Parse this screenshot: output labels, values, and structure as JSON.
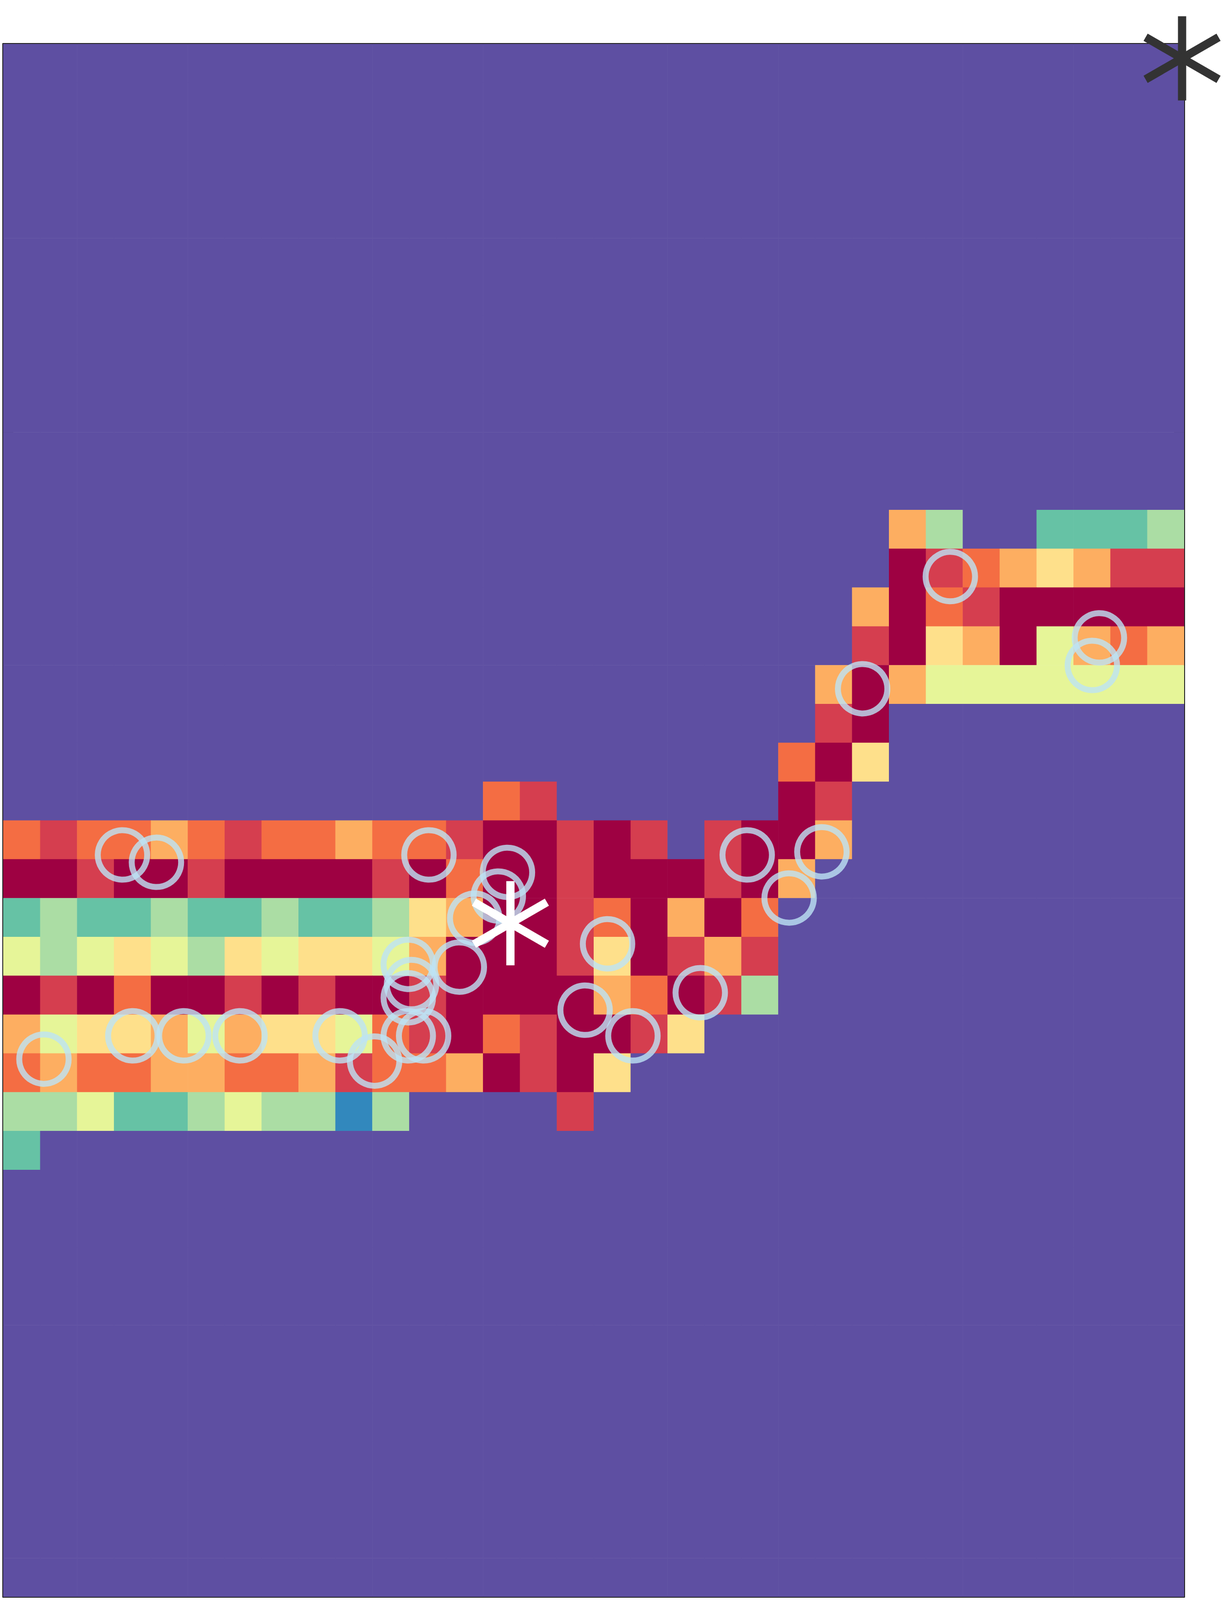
{
  "chart_data": {
    "type": "heatmap",
    "xlim": [
      0,
      4
    ],
    "ylim": [
      0,
      4
    ],
    "xticks": [
      0,
      1,
      2,
      3,
      4
    ],
    "yticks": [
      0,
      1,
      2,
      3,
      4
    ],
    "tick_labels": false,
    "grid": false,
    "clim": [
      0,
      9
    ],
    "x_edges": [
      0,
      0.125,
      0.25,
      0.375,
      0.5,
      0.625,
      0.75,
      0.875,
      1,
      1.125,
      1.25,
      1.375,
      1.5,
      1.625,
      1.75,
      1.875,
      2,
      2.125,
      2.25,
      2.375,
      2.5,
      2.625,
      2.75,
      2.875,
      3,
      3.125,
      3.25,
      3.375,
      3.5,
      3.625,
      3.75,
      3.875,
      4
    ],
    "y_edges": [
      4,
      3.9,
      3.8,
      3.7,
      3.6,
      3.5,
      3.4,
      3.3,
      3.2,
      3.1,
      3,
      2.9,
      2.8,
      2.7,
      2.6,
      2.5,
      2.4,
      2.3,
      2.2,
      2.1,
      2,
      1.9,
      1.8,
      1.7,
      1.6,
      1.5,
      1.4,
      1.3,
      1.2,
      1.1,
      1,
      0.9,
      0.8,
      0.7,
      0.6,
      0.5,
      0.4,
      0.3,
      0.2,
      0.1,
      0
    ],
    "cells": [
      [
        0,
        0,
        0,
        0,
        0,
        0,
        0,
        0,
        0,
        0,
        0,
        0,
        0,
        0,
        0,
        0,
        0,
        0,
        0,
        0,
        0,
        0,
        0,
        0,
        0,
        0,
        0,
        0,
        0,
        0,
        0,
        0
      ],
      [
        0,
        0,
        0,
        0,
        0,
        0,
        0,
        0,
        0,
        0,
        0,
        0,
        0,
        0,
        0,
        0,
        0,
        0,
        0,
        0,
        0,
        0,
        0,
        0,
        0,
        0,
        0,
        0,
        0,
        0,
        0,
        0
      ],
      [
        0,
        0,
        0,
        0,
        0,
        0,
        0,
        0,
        0,
        0,
        0,
        0,
        0,
        0,
        0,
        0,
        0,
        0,
        0,
        0,
        0,
        0,
        0,
        0,
        0,
        0,
        0,
        0,
        0,
        0,
        0,
        0
      ],
      [
        0,
        0,
        0,
        0,
        0,
        0,
        0,
        0,
        0,
        0,
        0,
        0,
        0,
        0,
        0,
        0,
        0,
        0,
        0,
        0,
        0,
        0,
        0,
        0,
        0,
        0,
        0,
        0,
        0,
        0,
        0,
        0
      ],
      [
        0,
        0,
        0,
        0,
        0,
        0,
        0,
        0,
        0,
        0,
        0,
        0,
        0,
        0,
        0,
        0,
        0,
        0,
        0,
        0,
        0,
        0,
        0,
        0,
        0,
        0,
        0,
        0,
        0,
        0,
        0,
        0
      ],
      [
        0,
        0,
        0,
        0,
        0,
        0,
        0,
        0,
        0,
        0,
        0,
        0,
        0,
        0,
        0,
        0,
        0,
        0,
        0,
        0,
        0,
        0,
        0,
        0,
        0,
        0,
        0,
        0,
        0,
        0,
        0,
        0
      ],
      [
        0,
        0,
        0,
        0,
        0,
        0,
        0,
        0,
        0,
        0,
        0,
        0,
        0,
        0,
        0,
        0,
        0,
        0,
        0,
        0,
        0,
        0,
        0,
        0,
        0,
        0,
        0,
        0,
        0,
        0,
        0,
        0
      ],
      [
        0,
        0,
        0,
        0,
        0,
        0,
        0,
        0,
        0,
        0,
        0,
        0,
        0,
        0,
        0,
        0,
        0,
        0,
        0,
        0,
        0,
        0,
        0,
        0,
        0,
        0,
        0,
        0,
        0,
        0,
        0,
        0
      ],
      [
        0,
        0,
        0,
        0,
        0,
        0,
        0,
        0,
        0,
        0,
        0,
        0,
        0,
        0,
        0,
        0,
        0,
        0,
        0,
        0,
        0,
        0,
        0,
        0,
        0,
        0,
        0,
        0,
        0,
        0,
        0,
        0
      ],
      [
        0,
        0,
        0,
        0,
        0,
        0,
        0,
        0,
        0,
        0,
        0,
        0,
        0,
        0,
        0,
        0,
        0,
        0,
        0,
        0,
        0,
        0,
        0,
        0,
        0,
        0,
        0,
        0,
        0,
        0,
        0,
        0
      ],
      [
        0,
        0,
        0,
        0,
        0,
        0,
        0,
        0,
        0,
        0,
        0,
        0,
        0,
        0,
        0,
        0,
        0,
        0,
        0,
        0,
        0,
        0,
        0,
        0,
        0,
        0,
        0,
        0,
        0,
        0,
        0,
        0
      ],
      [
        0,
        0,
        0,
        0,
        0,
        0,
        0,
        0,
        0,
        0,
        0,
        0,
        0,
        0,
        0,
        0,
        0,
        0,
        0,
        0,
        0,
        0,
        0,
        0,
        0,
        0,
        0,
        0,
        0,
        0,
        0,
        0
      ],
      [
        0,
        0,
        0,
        0,
        0,
        0,
        0,
        0,
        0,
        0,
        0,
        0,
        0,
        0,
        0,
        0,
        0,
        0,
        0,
        0,
        0,
        0,
        0,
        0,
        6,
        3,
        0,
        0,
        2,
        2,
        2,
        3
      ],
      [
        0,
        0,
        0,
        0,
        0,
        0,
        0,
        0,
        0,
        0,
        0,
        0,
        0,
        0,
        0,
        0,
        0,
        0,
        0,
        0,
        0,
        0,
        0,
        0,
        9,
        8,
        7,
        6,
        5,
        6,
        8,
        8
      ],
      [
        0,
        0,
        0,
        0,
        0,
        0,
        0,
        0,
        0,
        0,
        0,
        0,
        0,
        0,
        0,
        0,
        0,
        0,
        0,
        0,
        0,
        0,
        0,
        6,
        9,
        7,
        8,
        9,
        9,
        9,
        9,
        9
      ],
      [
        0,
        0,
        0,
        0,
        0,
        0,
        0,
        0,
        0,
        0,
        0,
        0,
        0,
        0,
        0,
        0,
        0,
        0,
        0,
        0,
        0,
        0,
        0,
        8,
        9,
        5,
        6,
        9,
        4,
        6,
        7,
        6
      ],
      [
        0,
        0,
        0,
        0,
        0,
        0,
        0,
        0,
        0,
        0,
        0,
        0,
        0,
        0,
        0,
        0,
        0,
        0,
        0,
        0,
        0,
        0,
        6,
        9,
        6,
        4,
        4,
        4,
        4,
        4,
        4,
        4
      ],
      [
        0,
        0,
        0,
        0,
        0,
        0,
        0,
        0,
        0,
        0,
        0,
        0,
        0,
        0,
        0,
        0,
        0,
        0,
        0,
        0,
        0,
        0,
        8,
        9,
        0,
        0,
        0,
        0,
        0,
        0,
        0,
        0
      ],
      [
        0,
        0,
        0,
        0,
        0,
        0,
        0,
        0,
        0,
        0,
        0,
        0,
        0,
        0,
        0,
        0,
        0,
        0,
        0,
        0,
        0,
        7,
        9,
        5,
        0,
        0,
        0,
        0,
        0,
        0,
        0,
        0
      ],
      [
        0,
        0,
        0,
        0,
        0,
        0,
        0,
        0,
        0,
        0,
        0,
        0,
        0,
        7,
        8,
        0,
        0,
        0,
        0,
        0,
        0,
        9,
        8,
        0,
        0,
        0,
        0,
        0,
        0,
        0,
        0,
        0
      ],
      [
        7,
        8,
        7,
        7,
        6,
        7,
        8,
        7,
        7,
        6,
        7,
        7,
        8,
        9,
        9,
        8,
        9,
        8,
        0,
        8,
        9,
        9,
        6,
        0,
        0,
        0,
        0,
        0,
        0,
        0,
        0,
        0
      ],
      [
        9,
        9,
        8,
        9,
        9,
        8,
        9,
        9,
        9,
        9,
        8,
        9,
        7,
        9,
        9,
        8,
        9,
        9,
        9,
        8,
        9,
        6,
        0,
        0,
        0,
        0,
        0,
        0,
        0,
        0,
        0,
        0
      ],
      [
        2,
        3,
        2,
        2,
        3,
        2,
        2,
        3,
        2,
        2,
        3,
        5,
        6,
        9,
        9,
        8,
        7,
        9,
        6,
        9,
        7,
        0,
        0,
        0,
        0,
        0,
        0,
        0,
        0,
        0,
        0,
        0
      ],
      [
        4,
        3,
        4,
        5,
        4,
        3,
        5,
        4,
        5,
        5,
        4,
        6,
        9,
        9,
        9,
        8,
        5,
        9,
        8,
        6,
        8,
        0,
        0,
        0,
        0,
        0,
        0,
        0,
        0,
        0,
        0,
        0
      ],
      [
        9,
        8,
        9,
        7,
        9,
        9,
        8,
        9,
        8,
        9,
        9,
        8,
        9,
        9,
        9,
        9,
        6,
        7,
        9,
        8,
        3,
        0,
        0,
        0,
        0,
        0,
        0,
        0,
        0,
        0,
        0,
        0
      ],
      [
        6,
        4,
        5,
        5,
        6,
        4,
        6,
        5,
        5,
        4,
        7,
        8,
        9,
        7,
        8,
        9,
        9,
        8,
        5,
        0,
        0,
        0,
        0,
        0,
        0,
        0,
        0,
        0,
        0,
        0,
        0,
        0
      ],
      [
        7,
        6,
        7,
        7,
        6,
        6,
        7,
        7,
        6,
        8,
        7,
        7,
        6,
        9,
        8,
        9,
        5,
        0,
        0,
        0,
        0,
        0,
        0,
        0,
        0,
        0,
        0,
        0,
        0,
        0,
        0,
        0
      ],
      [
        3,
        3,
        4,
        2,
        2,
        3,
        4,
        3,
        3,
        1,
        3,
        0,
        0,
        0,
        0,
        8,
        0,
        0,
        0,
        0,
        0,
        0,
        0,
        0,
        0,
        0,
        0,
        0,
        0,
        0,
        0,
        0
      ],
      [
        2,
        0,
        0,
        0,
        0,
        0,
        0,
        0,
        0,
        0,
        0,
        0,
        0,
        0,
        0,
        0,
        0,
        0,
        0,
        0,
        0,
        0,
        0,
        0,
        0,
        0,
        0,
        0,
        0,
        0,
        0,
        0
      ],
      [
        0,
        0,
        0,
        0,
        0,
        0,
        0,
        0,
        0,
        0,
        0,
        0,
        0,
        0,
        0,
        0,
        0,
        0,
        0,
        0,
        0,
        0,
        0,
        0,
        0,
        0,
        0,
        0,
        0,
        0,
        0,
        0
      ],
      [
        0,
        0,
        0,
        0,
        0,
        0,
        0,
        0,
        0,
        0,
        0,
        0,
        0,
        0,
        0,
        0,
        0,
        0,
        0,
        0,
        0,
        0,
        0,
        0,
        0,
        0,
        0,
        0,
        0,
        0,
        0,
        0
      ],
      [
        0,
        0,
        0,
        0,
        0,
        0,
        0,
        0,
        0,
        0,
        0,
        0,
        0,
        0,
        0,
        0,
        0,
        0,
        0,
        0,
        0,
        0,
        0,
        0,
        0,
        0,
        0,
        0,
        0,
        0,
        0,
        0
      ],
      [
        0,
        0,
        0,
        0,
        0,
        0,
        0,
        0,
        0,
        0,
        0,
        0,
        0,
        0,
        0,
        0,
        0,
        0,
        0,
        0,
        0,
        0,
        0,
        0,
        0,
        0,
        0,
        0,
        0,
        0,
        0,
        0
      ],
      [
        0,
        0,
        0,
        0,
        0,
        0,
        0,
        0,
        0,
        0,
        0,
        0,
        0,
        0,
        0,
        0,
        0,
        0,
        0,
        0,
        0,
        0,
        0,
        0,
        0,
        0,
        0,
        0,
        0,
        0,
        0,
        0
      ],
      [
        0,
        0,
        0,
        0,
        0,
        0,
        0,
        0,
        0,
        0,
        0,
        0,
        0,
        0,
        0,
        0,
        0,
        0,
        0,
        0,
        0,
        0,
        0,
        0,
        0,
        0,
        0,
        0,
        0,
        0,
        0,
        0
      ],
      [
        0,
        0,
        0,
        0,
        0,
        0,
        0,
        0,
        0,
        0,
        0,
        0,
        0,
        0,
        0,
        0,
        0,
        0,
        0,
        0,
        0,
        0,
        0,
        0,
        0,
        0,
        0,
        0,
        0,
        0,
        0,
        0
      ],
      [
        0,
        0,
        0,
        0,
        0,
        0,
        0,
        0,
        0,
        0,
        0,
        0,
        0,
        0,
        0,
        0,
        0,
        0,
        0,
        0,
        0,
        0,
        0,
        0,
        0,
        0,
        0,
        0,
        0,
        0,
        0,
        0
      ],
      [
        0,
        0,
        0,
        0,
        0,
        0,
        0,
        0,
        0,
        0,
        0,
        0,
        0,
        0,
        0,
        0,
        0,
        0,
        0,
        0,
        0,
        0,
        0,
        0,
        0,
        0,
        0,
        0,
        0,
        0,
        0,
        0
      ],
      [
        0,
        0,
        0,
        0,
        0,
        0,
        0,
        0,
        0,
        0,
        0,
        0,
        0,
        0,
        0,
        0,
        0,
        0,
        0,
        0,
        0,
        0,
        0,
        0,
        0,
        0,
        0,
        0,
        0,
        0,
        0,
        0
      ],
      [
        0,
        0,
        0,
        0,
        0,
        0,
        0,
        0,
        0,
        0,
        0,
        0,
        0,
        0,
        0,
        0,
        0,
        0,
        0,
        0,
        0,
        0,
        0,
        0,
        0,
        0,
        0,
        0,
        0,
        0,
        0,
        0
      ]
    ],
    "series": [
      {
        "type": "scatter",
        "marker": "circle",
        "color": "#bde3f5",
        "x": [
          0.404,
          0.519,
          1.442,
          1.708,
          1.677,
          1.597,
          1.372,
          1.383,
          1.372,
          1.545,
          2.047,
          2.52,
          2.773,
          2.662,
          2.361,
          1.971,
          2.133,
          0.138,
          0.439,
          0.612,
          0.802,
          1.141,
          1.258,
          1.372,
          1.424,
          2.911,
          3.208,
          3.713,
          3.689
        ],
        "y": [
          1.911,
          1.892,
          1.911,
          1.866,
          1.805,
          1.748,
          1.629,
          1.577,
          1.543,
          1.622,
          1.682,
          1.911,
          1.919,
          1.8,
          1.556,
          1.511,
          1.445,
          1.385,
          1.445,
          1.445,
          1.445,
          1.445,
          1.38,
          1.445,
          1.445,
          2.339,
          2.628,
          2.47,
          2.399
        ]
      },
      {
        "type": "scatter",
        "marker": "asterisk",
        "color": "#ffffff",
        "x": [
          1.718
        ],
        "y": [
          1.735
        ]
      },
      {
        "type": "scatter",
        "marker": "asterisk",
        "color": "#333333",
        "x": [
          3.993
        ],
        "y": [
          3.963
        ]
      }
    ]
  }
}
